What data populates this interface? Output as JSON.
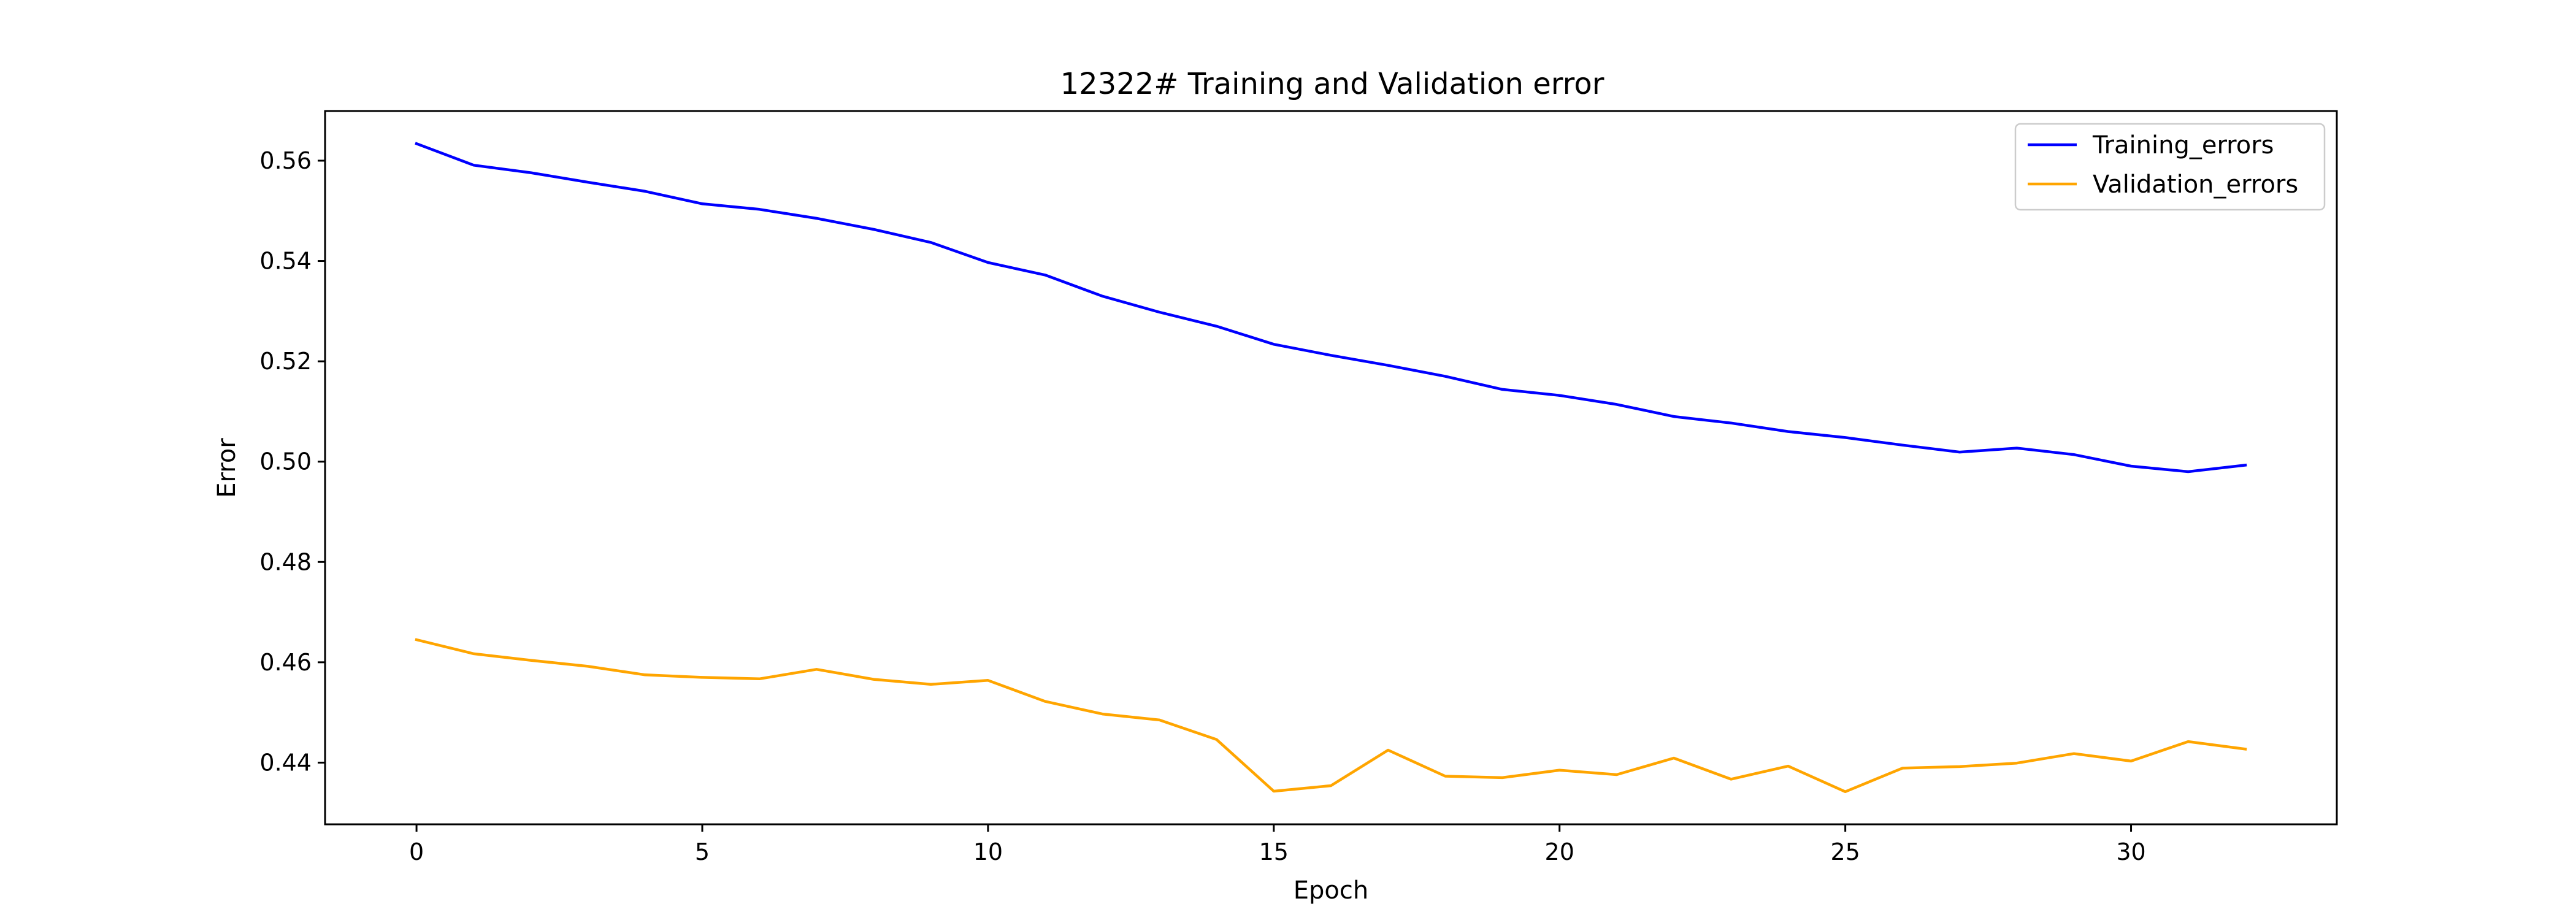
{
  "chart_data": {
    "type": "line",
    "title": "12322# Training and Validation error",
    "xlabel": "Epoch",
    "ylabel": "Error",
    "xlim": [
      -1.6,
      33.6
    ],
    "ylim": [
      0.4277,
      0.5699
    ],
    "xticks": [
      0,
      5,
      10,
      15,
      20,
      25,
      30
    ],
    "xtick_labels": [
      "0",
      "5",
      "10",
      "15",
      "20",
      "25",
      "30"
    ],
    "yticks": [
      0.44,
      0.46,
      0.48,
      0.5,
      0.52,
      0.54,
      0.56
    ],
    "ytick_labels": [
      "0.44",
      "0.46",
      "0.48",
      "0.50",
      "0.52",
      "0.54",
      "0.56"
    ],
    "grid": false,
    "legend_position": "top-right",
    "x": [
      0,
      1,
      2,
      3,
      4,
      5,
      6,
      7,
      8,
      9,
      10,
      11,
      12,
      13,
      14,
      15,
      16,
      17,
      18,
      19,
      20,
      21,
      22,
      23,
      24,
      25,
      26,
      27,
      28,
      29,
      30,
      31,
      32
    ],
    "series": [
      {
        "name": "Training_errors",
        "color": "#0000ff",
        "values": [
          0.5634,
          0.5591,
          0.5576,
          0.5557,
          0.5539,
          0.5514,
          0.5503,
          0.5485,
          0.5463,
          0.5437,
          0.5397,
          0.5372,
          0.533,
          0.5298,
          0.527,
          0.5234,
          0.5212,
          0.5192,
          0.517,
          0.5144,
          0.5132,
          0.5114,
          0.509,
          0.5077,
          0.506,
          0.5048,
          0.5033,
          0.5019,
          0.5027,
          0.5014,
          0.4991,
          0.498,
          0.4993
        ]
      },
      {
        "name": "Validation_errors",
        "color": "#ffa500",
        "values": [
          0.4645,
          0.4617,
          0.4604,
          0.4592,
          0.4575,
          0.457,
          0.4567,
          0.4586,
          0.4566,
          0.4556,
          0.4564,
          0.4522,
          0.4497,
          0.4485,
          0.4446,
          0.4343,
          0.4354,
          0.4425,
          0.4373,
          0.437,
          0.4385,
          0.4376,
          0.4409,
          0.4367,
          0.4393,
          0.4342,
          0.4389,
          0.4392,
          0.4399,
          0.4418,
          0.4403,
          0.4442,
          0.4427
        ]
      }
    ]
  }
}
